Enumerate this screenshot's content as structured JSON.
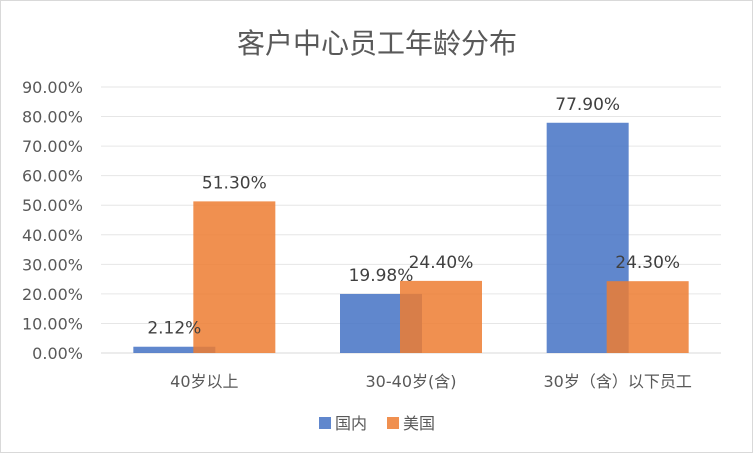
{
  "chart_data": {
    "type": "bar",
    "title": "客户中心员工年龄分布",
    "categories": [
      "40岁以上",
      "30-40岁(含)",
      "30岁（含）以下员工"
    ],
    "series": [
      {
        "name": "国内",
        "values": [
          2.12,
          19.98,
          77.9
        ],
        "labels": [
          "2.12%",
          "19.98%",
          "77.90%"
        ],
        "color": "#4472C4"
      },
      {
        "name": "美国",
        "values": [
          51.3,
          24.4,
          24.3
        ],
        "labels": [
          "51.30%",
          "24.40%",
          "24.30%"
        ],
        "color": "#ED7D31"
      }
    ],
    "ylim": [
      0,
      90
    ],
    "yticks": [
      "0.00%",
      "10.00%",
      "20.00%",
      "30.00%",
      "40.00%",
      "50.00%",
      "60.00%",
      "70.00%",
      "80.00%",
      "90.00%"
    ],
    "grid": true,
    "legend_position": "bottom"
  }
}
